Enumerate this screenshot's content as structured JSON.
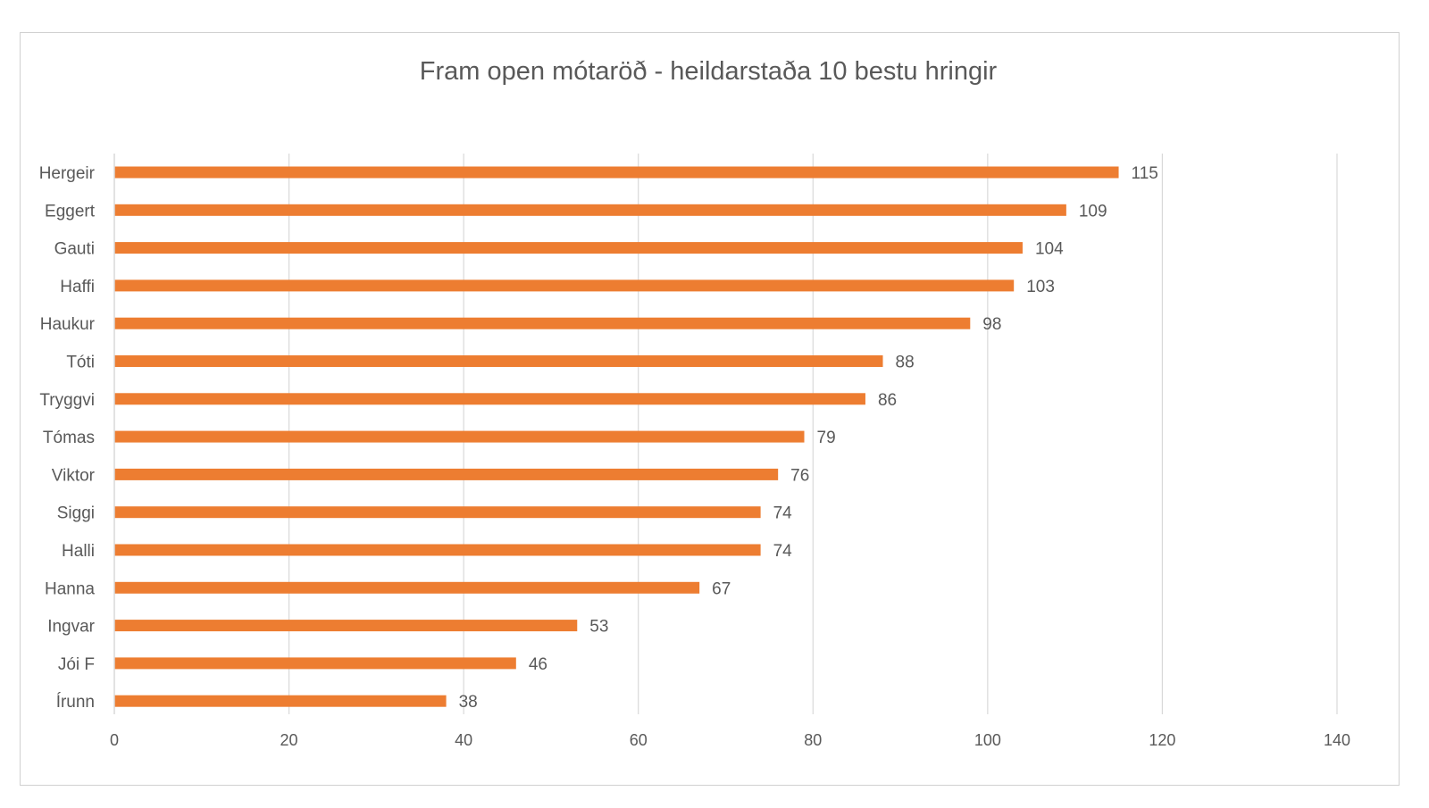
{
  "chart_data": {
    "type": "bar",
    "orientation": "horizontal",
    "title": "Fram open mótaröð - heildarstaða 10 bestu hringir",
    "xlabel": "",
    "ylabel": "",
    "categories": [
      "Hergeir",
      "Eggert",
      "Gauti",
      "Haffi",
      "Haukur",
      "Tóti",
      "Tryggvi",
      "Tómas",
      "Viktor",
      "Siggi",
      "Halli",
      "Hanna",
      "Ingvar",
      "Jói F",
      "Írunn"
    ],
    "values": [
      115,
      109,
      104,
      103,
      98,
      88,
      86,
      79,
      76,
      74,
      74,
      67,
      53,
      46,
      38
    ],
    "xlim": [
      0,
      140
    ],
    "xticks": [
      0,
      20,
      40,
      60,
      80,
      100,
      120,
      140
    ],
    "grid": "vertical",
    "legend": "none",
    "data_labels": true,
    "colors": {
      "bar": "#ED7D31",
      "grid": "#d9d9d9",
      "text": "#595959",
      "frame": "#d0d0d0"
    }
  }
}
